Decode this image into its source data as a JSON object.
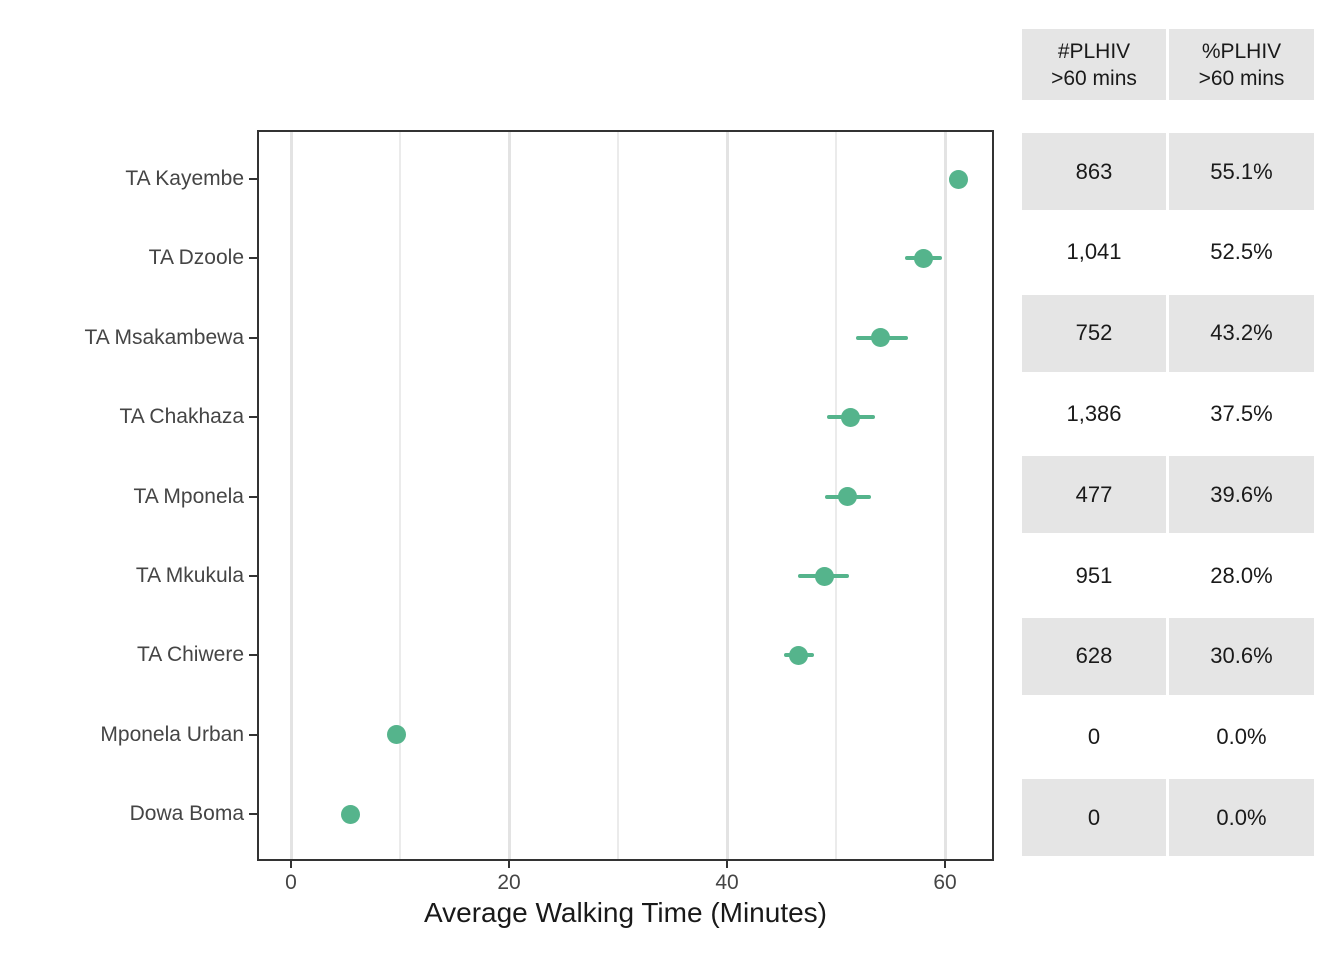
{
  "chart_data": {
    "type": "scatter",
    "subtype": "horizontal-dot-plot-with-error-bars",
    "title": "",
    "xlabel": "Average Walking Time (Minutes)",
    "ylabel": "",
    "categories": [
      "TA Kayembe",
      "TA Dzoole",
      "TA Msakambewa",
      "TA Chakhaza",
      "TA Mponela",
      "TA Mkukula",
      "TA Chiwere",
      "Mponela Urban",
      "Dowa Boma"
    ],
    "values": [
      61.2,
      58.0,
      54.1,
      51.3,
      51.1,
      48.9,
      46.6,
      9.7,
      5.5
    ],
    "error_low": [
      60.4,
      56.3,
      51.8,
      49.2,
      49.0,
      46.5,
      45.2,
      9.7,
      5.5
    ],
    "error_high": [
      62.0,
      59.7,
      56.6,
      53.6,
      53.2,
      51.2,
      48.0,
      9.7,
      5.5
    ],
    "x_major_ticks": [
      0,
      20,
      40,
      60
    ],
    "x_minor_gridlines": [
      10,
      30,
      50
    ],
    "xlim": [
      -3.1,
      64.5
    ],
    "grid": "vertical gridlines only, white panel, dark panel border",
    "legend": "none"
  },
  "table": {
    "columns": [
      {
        "line1": "#PLHIV",
        "line2": ">60 mins"
      },
      {
        "line1": "%PLHIV",
        "line2": ">60 mins"
      }
    ],
    "rows": [
      {
        "category": "TA Kayembe",
        "n": "863",
        "pct": "55.1%"
      },
      {
        "category": "TA Dzoole",
        "n": "1,041",
        "pct": "52.5%"
      },
      {
        "category": "TA Msakambewa",
        "n": "752",
        "pct": "43.2%"
      },
      {
        "category": "TA Chakhaza",
        "n": "1,386",
        "pct": "37.5%"
      },
      {
        "category": "TA Mponela",
        "n": "477",
        "pct": "39.6%"
      },
      {
        "category": "TA Mkukula",
        "n": "951",
        "pct": "28.0%"
      },
      {
        "category": "TA Chiwere",
        "n": "628",
        "pct": "30.6%"
      },
      {
        "category": "Mponela Urban",
        "n": "0",
        "pct": "0.0%"
      },
      {
        "category": "Dowa Boma",
        "n": "0",
        "pct": "0.0%"
      }
    ]
  },
  "colors": {
    "point": "#55b48c",
    "error_bar": "#55b48c",
    "cell_shaded": "#e5e5e5",
    "cell_unshaded": "#ffffff",
    "grid_major": "#e3e3e3",
    "grid_minor": "#ebebeb",
    "panel_border": "#333333",
    "axis_text": "#454545",
    "axis_title_text": "#191919",
    "table_text": "#1a1a1a",
    "background": "#ffffff"
  }
}
